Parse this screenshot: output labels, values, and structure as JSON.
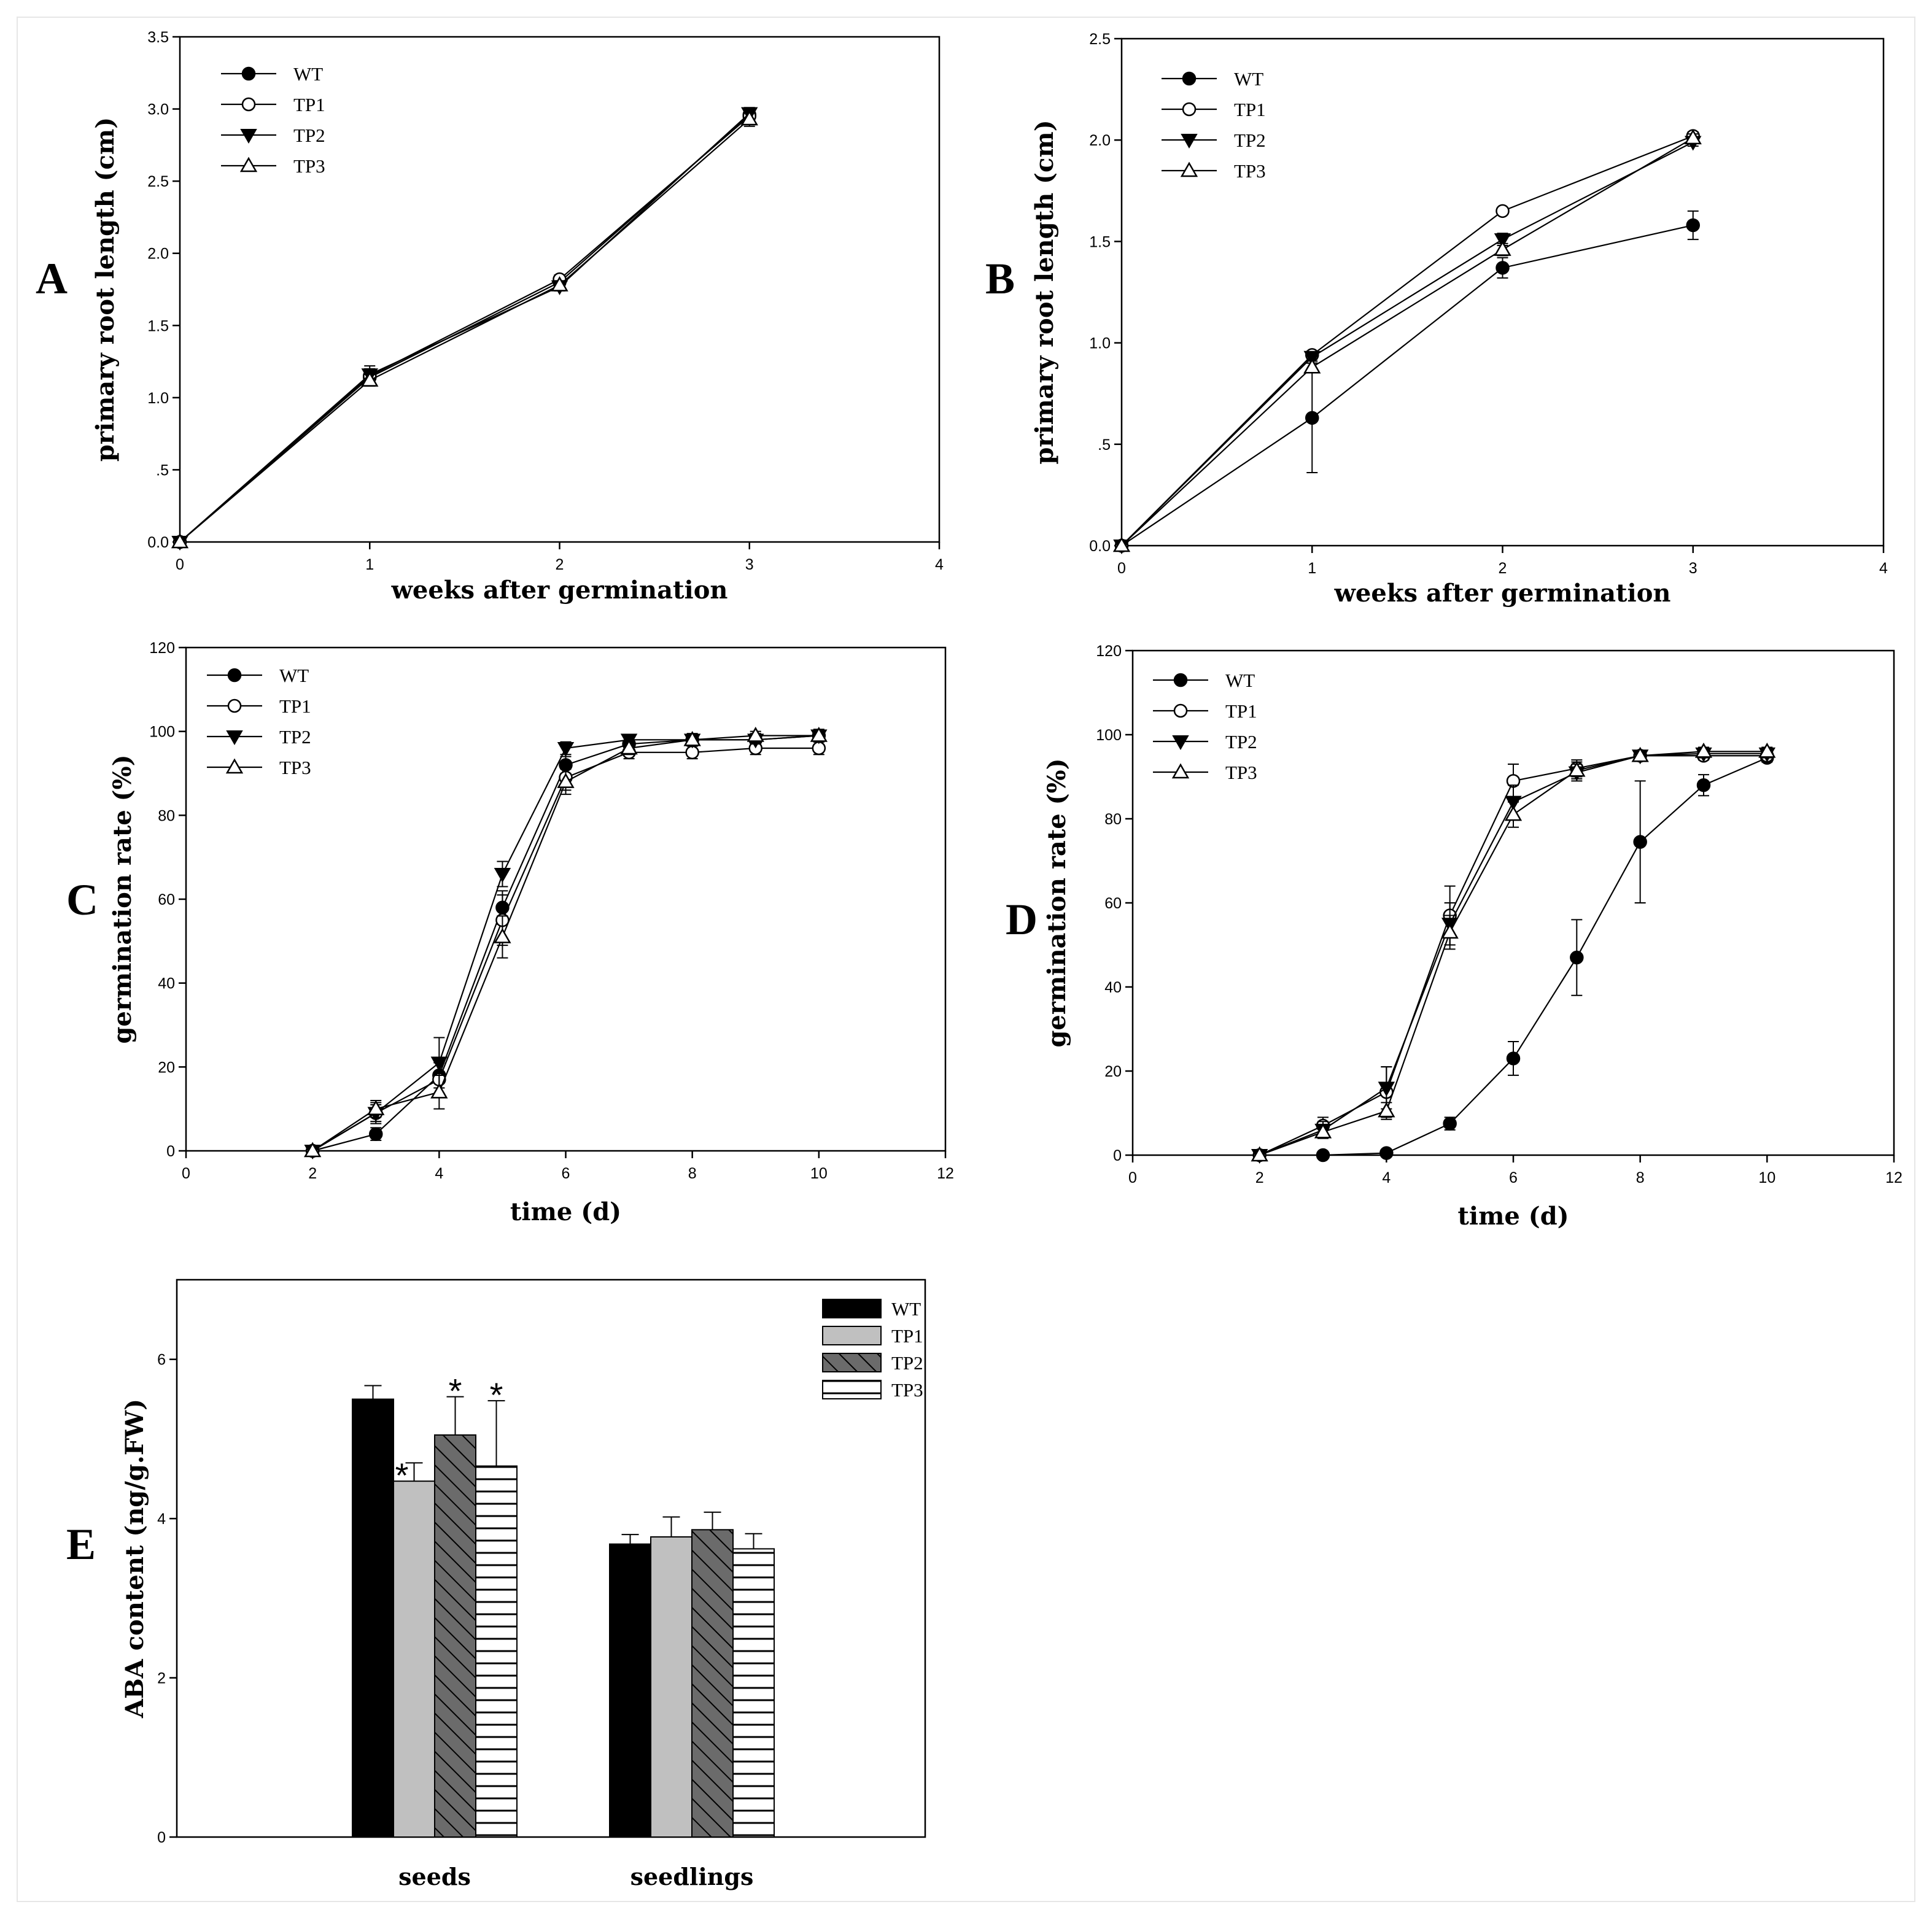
{
  "chart_data": [
    {
      "id": "A",
      "type": "line",
      "panel_label": "A",
      "xlabel": "weeks after germination",
      "ylabel": "primary root length (cm)",
      "xlim": [
        0,
        4
      ],
      "ylim": [
        0,
        3.5
      ],
      "xticks": [
        0,
        1,
        2,
        3,
        4
      ],
      "xtick_labels": [
        "0",
        "1",
        "2",
        "3",
        "4"
      ],
      "yticks": [
        0,
        0.5,
        1,
        1.5,
        2,
        2.5,
        3,
        3.5
      ],
      "ytick_labels": [
        "0.0",
        ".5",
        "1.0",
        "1.5",
        "2.0",
        "2.5",
        "3.0",
        "3.5"
      ],
      "legend": "top-left",
      "series": [
        {
          "name": "WT",
          "marker": "filled-circle",
          "x": [
            0,
            1,
            2,
            3
          ],
          "y": [
            0,
            1.14,
            1.8,
            2.96
          ],
          "err": [
            0,
            0.05,
            0.04,
            0.04
          ]
        },
        {
          "name": "TP1",
          "marker": "open-circle",
          "x": [
            0,
            1,
            2,
            3
          ],
          "y": [
            0,
            1.15,
            1.82,
            2.95
          ],
          "err": [
            0,
            0.05,
            0.03,
            0.04
          ]
        },
        {
          "name": "TP2",
          "marker": "filled-triangle-down",
          "x": [
            0,
            1,
            2,
            3
          ],
          "y": [
            0,
            1.16,
            1.77,
            2.97
          ],
          "err": [
            0,
            0.06,
            0.03,
            0.04
          ]
        },
        {
          "name": "TP3",
          "marker": "open-triangle-up",
          "x": [
            0,
            1,
            2,
            3
          ],
          "y": [
            0,
            1.12,
            1.78,
            2.93
          ],
          "err": [
            0,
            0.04,
            0.03,
            0.05
          ]
        }
      ]
    },
    {
      "id": "B",
      "type": "line",
      "panel_label": "B",
      "xlabel": "weeks after germination",
      "ylabel": "primary root length (cm)",
      "xlim": [
        0,
        4
      ],
      "ylim": [
        0,
        2.5
      ],
      "xticks": [
        0,
        1,
        2,
        3,
        4
      ],
      "xtick_labels": [
        "0",
        "1",
        "2",
        "3",
        "4"
      ],
      "yticks": [
        0,
        0.5,
        1,
        1.5,
        2,
        2.5
      ],
      "ytick_labels": [
        "0.0",
        ".5",
        "1.0",
        "1.5",
        "2.0",
        "2.5"
      ],
      "legend": "top-left",
      "series": [
        {
          "name": "WT",
          "marker": "filled-circle",
          "x": [
            0,
            1,
            2,
            3
          ],
          "y": [
            0,
            0.63,
            1.37,
            1.58
          ],
          "err": [
            0,
            0.27,
            0.05,
            0.07
          ]
        },
        {
          "name": "TP1",
          "marker": "open-circle",
          "x": [
            0,
            1,
            2,
            3
          ],
          "y": [
            0,
            0.94,
            1.65,
            2.02
          ],
          "err": [
            0,
            0.02,
            0.01,
            0.02
          ]
        },
        {
          "name": "TP2",
          "marker": "filled-triangle-down",
          "x": [
            0,
            1,
            2,
            3
          ],
          "y": [
            0,
            0.93,
            1.51,
            1.99
          ],
          "err": [
            0,
            0.02,
            0.03,
            0.02
          ]
        },
        {
          "name": "TP3",
          "marker": "open-triangle-up",
          "x": [
            0,
            1,
            2,
            3
          ],
          "y": [
            0,
            0.88,
            1.46,
            2.01
          ],
          "err": [
            0,
            0.02,
            0.03,
            0.02
          ]
        }
      ]
    },
    {
      "id": "C",
      "type": "line",
      "panel_label": "C",
      "xlabel": "time (d)",
      "ylabel": "germination rate (%)",
      "xlim": [
        0,
        12
      ],
      "ylim": [
        0,
        120
      ],
      "xticks": [
        0,
        2,
        4,
        6,
        8,
        10,
        12
      ],
      "xtick_labels": [
        "0",
        "2",
        "4",
        "6",
        "8",
        "10",
        "12"
      ],
      "yticks": [
        0,
        20,
        40,
        60,
        80,
        100,
        120
      ],
      "ytick_labels": [
        "0",
        "20",
        "40",
        "60",
        "80",
        "100",
        "120"
      ],
      "legend": "top-left",
      "series": [
        {
          "name": "WT",
          "marker": "filled-circle",
          "x": [
            2,
            3,
            4,
            5,
            6,
            7,
            8,
            9,
            10
          ],
          "y": [
            0,
            4,
            18,
            58,
            92,
            97,
            98,
            98,
            99
          ],
          "err": [
            0,
            1.5,
            3,
            4,
            2,
            1.5,
            1.5,
            1.5,
            1.5
          ]
        },
        {
          "name": "TP1",
          "marker": "open-circle",
          "x": [
            2,
            3,
            4,
            5,
            6,
            7,
            8,
            9,
            10
          ],
          "y": [
            0,
            9,
            17,
            55,
            89,
            95,
            95,
            96,
            96
          ],
          "err": [
            0,
            2.5,
            4,
            6,
            3,
            1.5,
            1.5,
            1.5,
            1.5
          ]
        },
        {
          "name": "TP2",
          "marker": "filled-triangle-down",
          "x": [
            2,
            3,
            4,
            5,
            6,
            7,
            8,
            9,
            10
          ],
          "y": [
            0,
            9,
            21,
            66,
            96,
            98,
            98,
            98,
            99
          ],
          "err": [
            0,
            2,
            6,
            3,
            1.5,
            1,
            1,
            1,
            1
          ]
        },
        {
          "name": "TP3",
          "marker": "open-triangle-up",
          "x": [
            2,
            3,
            4,
            5,
            6,
            7,
            8,
            9,
            10
          ],
          "y": [
            0,
            10,
            14,
            51,
            88,
            96,
            98,
            99,
            99
          ],
          "err": [
            0,
            2,
            4,
            5,
            3,
            1.5,
            1,
            1,
            1
          ]
        }
      ]
    },
    {
      "id": "D",
      "type": "line",
      "panel_label": "D",
      "xlabel": "time (d)",
      "ylabel": "germination rate (%)",
      "xlim": [
        0,
        12
      ],
      "ylim": [
        0,
        120
      ],
      "xticks": [
        0,
        2,
        4,
        6,
        8,
        10,
        12
      ],
      "xtick_labels": [
        "0",
        "2",
        "4",
        "6",
        "8",
        "10",
        "12"
      ],
      "yticks": [
        0,
        20,
        40,
        60,
        80,
        100,
        120
      ],
      "ytick_labels": [
        "0",
        "20",
        "40",
        "60",
        "80",
        "100",
        "120"
      ],
      "legend": "top-left",
      "series": [
        {
          "name": "WT",
          "marker": "filled-circle",
          "x": [
            3,
            4,
            5,
            6,
            7,
            8,
            9,
            10
          ],
          "y": [
            0,
            0.5,
            7.5,
            23,
            47,
            74.5,
            88,
            94.5
          ],
          "err": [
            0,
            0.3,
            1.5,
            4,
            9,
            14.5,
            2.5,
            1
          ]
        },
        {
          "name": "TP1",
          "marker": "open-circle",
          "x": [
            2,
            3,
            4,
            5,
            6,
            7,
            8,
            9,
            10
          ],
          "y": [
            0,
            7,
            15,
            57,
            89,
            92,
            95,
            95,
            95
          ],
          "err": [
            0,
            2,
            6,
            7,
            4,
            2,
            1,
            1,
            1
          ]
        },
        {
          "name": "TP2",
          "marker": "filled-triangle-down",
          "x": [
            2,
            3,
            4,
            5,
            6,
            7,
            8,
            9,
            10
          ],
          "y": [
            0,
            6,
            16,
            55,
            84,
            91,
            95,
            95.5,
            95.5
          ],
          "err": [
            0,
            2,
            5,
            5,
            4,
            2,
            1,
            1,
            1
          ]
        },
        {
          "name": "TP3",
          "marker": "open-triangle-up",
          "x": [
            2,
            3,
            4,
            5,
            6,
            7,
            8,
            9,
            10
          ],
          "y": [
            0,
            5.5,
            10.5,
            53,
            81,
            91.5,
            95,
            96,
            96
          ],
          "err": [
            0,
            1.5,
            2,
            4,
            3,
            2,
            1,
            1,
            1
          ]
        }
      ]
    },
    {
      "id": "E",
      "type": "bar",
      "panel_label": "E",
      "xlabel": "",
      "ylabel": "ABA content (ng/g.FW)",
      "ylim": [
        0,
        7
      ],
      "yticks": [
        0,
        2,
        4,
        6
      ],
      "ytick_labels": [
        "0",
        "2",
        "4",
        "6"
      ],
      "categories": [
        "seeds",
        "seedlings"
      ],
      "legend": "top-right",
      "series": [
        {
          "name": "WT",
          "fill": "solid-black",
          "values": [
            5.5,
            3.68
          ],
          "err": [
            0.17,
            0.12
          ],
          "significance": [
            "",
            ""
          ]
        },
        {
          "name": "TP1",
          "fill": "solid-grey",
          "values": [
            4.47,
            3.77
          ],
          "err": [
            0.23,
            0.25
          ],
          "significance": [
            "*",
            ""
          ]
        },
        {
          "name": "TP2",
          "fill": "diagonal-hatch",
          "values": [
            5.05,
            3.86
          ],
          "err": [
            0.48,
            0.22
          ],
          "significance": [
            "*",
            ""
          ]
        },
        {
          "name": "TP3",
          "fill": "horizontal-stripes",
          "values": [
            4.66,
            3.62
          ],
          "err": [
            0.82,
            0.19
          ],
          "significance": [
            "*",
            ""
          ]
        }
      ]
    }
  ],
  "colors": {
    "ink": "#000000",
    "bar_black": "#000000",
    "bar_grey": "#c0c0c0",
    "bar_hatch": "#6b6b6b",
    "bar_stripe": "#ffffff"
  }
}
